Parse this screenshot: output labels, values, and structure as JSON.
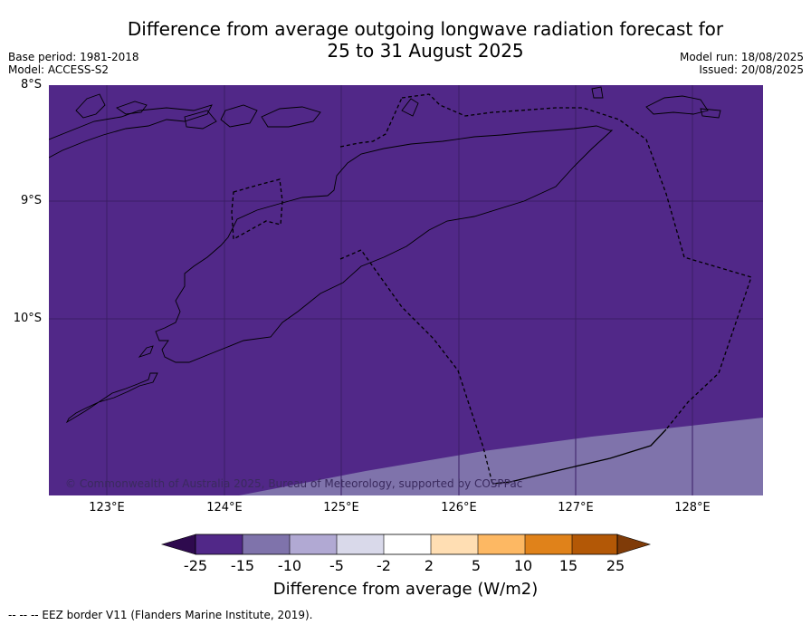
{
  "title_line1": "Difference from average outgoing longwave radiation forecast for",
  "title_line2": "25 to 31 August 2025",
  "base_period": "Base period: 1981-2018",
  "model": "Model: ACCESS-S2",
  "model_run": "Model run: 18/08/2025",
  "issued": "Issued: 20/08/2025",
  "map": {
    "lat_labels": [
      "8°S",
      "9°S",
      "10°S"
    ],
    "lon_labels": [
      "123°E",
      "124°E",
      "125°E",
      "126°E",
      "127°E",
      "128°E"
    ],
    "copyright": "© Commonwealth of Australia 2025, Bureau of Meteorology, supported by COSPPac",
    "colors": {
      "anomaly_lt_minus15": "#512888",
      "anomaly_minus15_to_minus10": "#7f73ab",
      "coastline": "#000000",
      "gridline": "#3a1e66"
    }
  },
  "colorbar": {
    "ticks": [
      "-25",
      "-15",
      "-10",
      "-5",
      "-2",
      "2",
      "5",
      "10",
      "15",
      "25"
    ],
    "colors": [
      "#2e0a4e",
      "#512888",
      "#7f73ab",
      "#b1a9d3",
      "#d9d9ea",
      "#ffffff",
      "#ffdeb3",
      "#fdb863",
      "#e0821a",
      "#b35806",
      "#7f3b08"
    ],
    "label": "Difference from average (W/m2)"
  },
  "footer": "--  --  -- EEZ border V11 (Flanders Marine Institute, 2019)."
}
